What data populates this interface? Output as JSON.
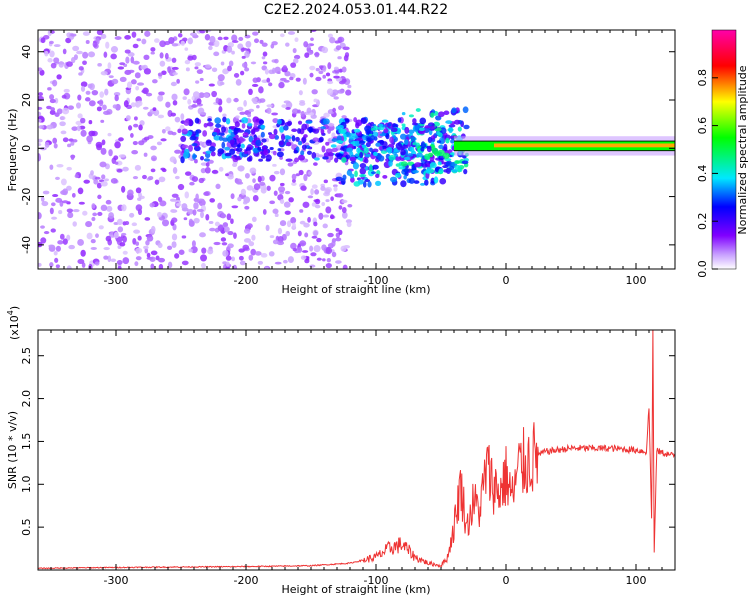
{
  "title": "C2E2.2024.053.01.44.R22",
  "chart_data": [
    {
      "type": "heatmap",
      "xlabel": "Height of straight line (km)",
      "ylabel": "Frequency (Hz)",
      "xlim": [
        -360,
        130
      ],
      "ylim": [
        -50,
        49
      ],
      "xticks": [
        -300,
        -200,
        -100,
        0,
        100
      ],
      "yticks": [
        -40,
        -20,
        0,
        20,
        40
      ],
      "xtick_labels": [
        "-300",
        "-200",
        "-100",
        "0",
        "100"
      ],
      "ytick_labels": [
        "-40",
        "-20",
        "0",
        "20",
        "40"
      ],
      "colorbar": {
        "label": "Normalized spectral amplitude",
        "range": [
          0,
          1
        ],
        "ticks": [
          0.0,
          0.2,
          0.4,
          0.6,
          0.8
        ],
        "tick_labels": [
          "0.0",
          "0.2",
          "0.4",
          "0.6",
          "0.8"
        ],
        "colormap": "rainbow (white-violet-blue-cyan-green-yellow-red-magenta)"
      },
      "features": [
        {
          "x_range": [
            -360,
            -120
          ],
          "y_range": [
            -50,
            49
          ],
          "amplitude": 0.1
        },
        {
          "x_range": [
            -250,
            -80
          ],
          "y_range": [
            -5,
            12
          ],
          "amplitude": 0.3
        },
        {
          "x_range": [
            -130,
            -40
          ],
          "y_range": [
            -15,
            10
          ],
          "amplitude": 0.35
        },
        {
          "x_range": [
            -80,
            -30
          ],
          "y_range": [
            -10,
            16
          ],
          "amplitude": 0.4
        },
        {
          "x_range": [
            -40,
            130
          ],
          "y_range": [
            -1,
            3
          ],
          "amplitude": 0.75
        }
      ]
    },
    {
      "type": "line",
      "xlabel": "Height of straight line (km)",
      "ylabel": "SNR (10 * v/v)",
      "y_multiplier": "(x10",
      "y_multiplier_exp": "4",
      "xlim": [
        -360,
        130
      ],
      "ylim": [
        0,
        2.8
      ],
      "xticks": [
        -300,
        -200,
        -100,
        0,
        100
      ],
      "yticks": [
        0.5,
        1.0,
        1.5,
        2.0,
        2.5
      ],
      "xtick_labels": [
        "-300",
        "-200",
        "-100",
        "0",
        "100"
      ],
      "ytick_labels": [
        "0.5",
        "1.0",
        "1.5",
        "2.0",
        "2.5"
      ],
      "color": "#ee3333",
      "x": [
        -360,
        -300,
        -200,
        -150,
        -120,
        -100,
        -90,
        -80,
        -70,
        -60,
        -50,
        -45,
        -40,
        -35,
        -30,
        -25,
        -20,
        -15,
        -10,
        -5,
        0,
        5,
        10,
        20,
        30,
        50,
        80,
        100,
        108,
        110,
        112,
        113,
        114,
        116,
        118,
        120,
        125,
        130
      ],
      "y": [
        0.02,
        0.03,
        0.04,
        0.05,
        0.08,
        0.15,
        0.25,
        0.3,
        0.15,
        0.08,
        0.05,
        0.15,
        0.5,
        1.0,
        0.5,
        0.8,
        0.7,
        1.2,
        1.0,
        0.9,
        1.1,
        0.85,
        1.2,
        1.3,
        1.38,
        1.42,
        1.42,
        1.4,
        1.38,
        1.9,
        0.6,
        2.8,
        0.2,
        1.4,
        1.38,
        1.37,
        1.35,
        1.33
      ]
    }
  ]
}
